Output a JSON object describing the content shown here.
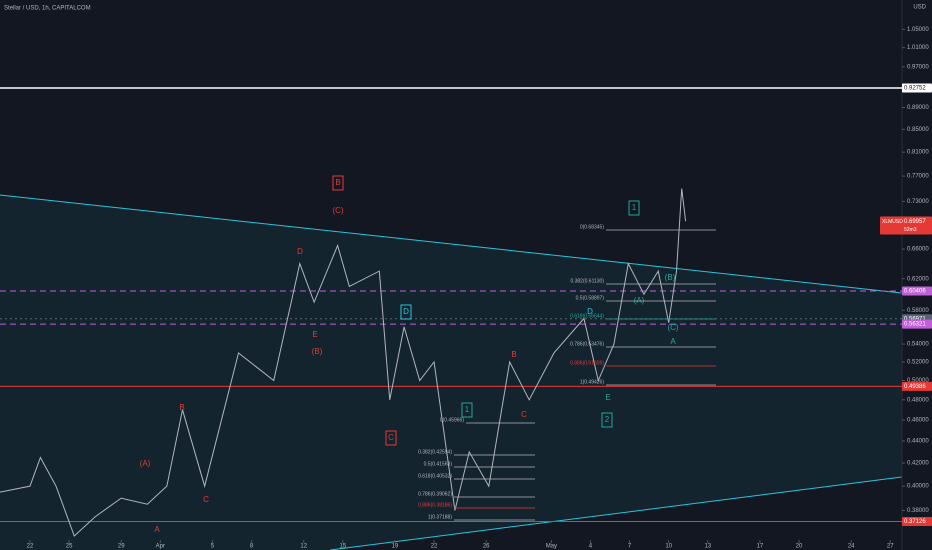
{
  "chart_data": {
    "type": "line",
    "title": "Stellar / USD, 1h, CAPITALCOM",
    "currency": "USD",
    "log_scale": true,
    "xlim": [
      -2.3,
      66.9
    ],
    "ylim": [
      0.357,
      1.117
    ],
    "xticks": [
      {
        "value": 0,
        "label": "22"
      },
      {
        "value": 3,
        "label": "25"
      },
      {
        "value": 7,
        "label": "29"
      },
      {
        "value": 10,
        "label": "Apr"
      },
      {
        "value": 14,
        "label": "5"
      },
      {
        "value": 17,
        "label": "8"
      },
      {
        "value": 21,
        "label": "12"
      },
      {
        "value": 24,
        "label": "15"
      },
      {
        "value": 28,
        "label": "19"
      },
      {
        "value": 31,
        "label": "22"
      },
      {
        "value": 35,
        "label": "26"
      },
      {
        "value": 40,
        "label": "May"
      },
      {
        "value": 43,
        "label": "4"
      },
      {
        "value": 46,
        "label": "7"
      },
      {
        "value": 49,
        "label": "10"
      },
      {
        "value": 52,
        "label": "13"
      },
      {
        "value": 56,
        "label": "17"
      },
      {
        "value": 59,
        "label": "20"
      },
      {
        "value": 63,
        "label": "24"
      },
      {
        "value": 66,
        "label": "27"
      }
    ],
    "yticks": [
      {
        "value": 1.05,
        "label": "1.05000"
      },
      {
        "value": 1.01,
        "label": "1.01000"
      },
      {
        "value": 0.97,
        "label": "0.97000"
      },
      {
        "value": 0.89,
        "label": "0.89000"
      },
      {
        "value": 0.85,
        "label": "0.85000"
      },
      {
        "value": 0.81,
        "label": "0.81000"
      },
      {
        "value": 0.77,
        "label": "0.77000"
      },
      {
        "value": 0.73,
        "label": "0.73000"
      },
      {
        "value": 0.66,
        "label": "0.66000"
      },
      {
        "value": 0.62,
        "label": "0.62000"
      },
      {
        "value": 0.58,
        "label": "0.58000"
      },
      {
        "value": 0.54,
        "label": "0.54000"
      },
      {
        "value": 0.52,
        "label": "0.52000"
      },
      {
        "value": 0.5,
        "label": "0.50000"
      },
      {
        "value": 0.48,
        "label": "0.48000"
      },
      {
        "value": 0.46,
        "label": "0.46000"
      },
      {
        "value": 0.44,
        "label": "0.44000"
      },
      {
        "value": 0.42,
        "label": "0.42000"
      },
      {
        "value": 0.4,
        "label": "0.40000"
      },
      {
        "value": 0.38,
        "label": "0.38000"
      }
    ],
    "series": [
      {
        "name": "XLMUSD",
        "color": "#b2b5be",
        "x": [
          -2.3,
          0,
          0.8,
          2,
          3.4,
          5,
          7,
          9,
          10.5,
          11.7,
          13.4,
          16,
          18.7,
          20.7,
          21.8,
          23.6,
          24.5,
          26.8,
          27.6,
          28.7,
          29.9,
          31,
          32.6,
          33.7,
          35.2,
          36.8,
          38.3,
          40.2,
          42.5,
          43.6,
          44.8,
          45.9,
          47.1,
          48.2,
          49,
          49.6,
          50,
          50.3
        ],
        "values": [
          0.395,
          0.4,
          0.425,
          0.4,
          0.36,
          0.375,
          0.39,
          0.385,
          0.4,
          0.47,
          0.4,
          0.53,
          0.5,
          0.64,
          0.59,
          0.665,
          0.61,
          0.63,
          0.48,
          0.56,
          0.5,
          0.52,
          0.38,
          0.43,
          0.4,
          0.52,
          0.48,
          0.53,
          0.57,
          0.5,
          0.54,
          0.64,
          0.6,
          0.63,
          0.565,
          0.63,
          0.75,
          0.7
        ]
      }
    ],
    "last_price": {
      "value": 0.69957,
      "label": "0.69957",
      "countdown": "52m3"
    },
    "price_lines": [
      {
        "value": 0.92752,
        "label": "0.92752",
        "color": "#ffffff",
        "style": "solid"
      },
      {
        "value": 0.60406,
        "label": "0.60406",
        "color": "#c05fd8",
        "style": "dashed"
      },
      {
        "value": 0.56971,
        "label": "0.56971",
        "color": "#5b6378",
        "style": "dotted"
      },
      {
        "value": 0.56321,
        "label": "0.56321",
        "color": "#c05fd8",
        "style": "dashed"
      },
      {
        "value": 0.49386,
        "label": "0.49386",
        "color": "#e53935",
        "style": "solid"
      },
      {
        "value": 0.37126,
        "label": "0.37126",
        "color": "#e53935",
        "style": "solid"
      }
    ],
    "annotations": [
      {
        "text": "B",
        "color": "#e53935",
        "boxed": true
      },
      {
        "text": "(C)",
        "color": "#e53935"
      },
      {
        "text": "D",
        "color": "#e53935"
      },
      {
        "text": "E",
        "color": "#e53935"
      },
      {
        "text": "(B)",
        "color": "#e53935"
      },
      {
        "text": "(A)",
        "color": "#e53935"
      },
      {
        "text": "B",
        "color": "#e53935"
      },
      {
        "text": "C",
        "color": "#e53935"
      },
      {
        "text": "A",
        "color": "#e53935"
      },
      {
        "text": "D",
        "color": "#26c6da",
        "boxed": true
      },
      {
        "text": "C",
        "color": "#e53935",
        "boxed": true
      },
      {
        "text": "1",
        "color": "#26a69a",
        "boxed": true
      },
      {
        "text": "2",
        "color": "#26a69a",
        "boxed": true
      },
      {
        "text": "B",
        "color": "#e53935"
      },
      {
        "text": "C",
        "color": "#e53935"
      },
      {
        "text": "E",
        "color": "#26a69a"
      },
      {
        "text": "D",
        "color": "#26c6da"
      },
      {
        "text": "1",
        "color": "#26a69a",
        "boxed": true
      },
      {
        "text": "(A)",
        "color": "#26a69a"
      },
      {
        "text": "(B)",
        "color": "#26a69a"
      },
      {
        "text": "(C)",
        "color": "#26a69a"
      },
      {
        "text": "A",
        "color": "#26a69a"
      }
    ],
    "fib_labels": [
      {
        "text": "0(0.45966)",
        "color": "#b2b5be"
      },
      {
        "text": "0.382(0.42594)",
        "color": "#b2b5be"
      },
      {
        "text": "0.5(0.41563)",
        "color": "#b2b5be"
      },
      {
        "text": "0.618(0.40532)",
        "color": "#b2b5be"
      },
      {
        "text": "0.786(0.39062)",
        "color": "#b2b5be"
      },
      {
        "text": "0.886(0.38186)",
        "color": "#e53935"
      },
      {
        "text": "1(0.37188)",
        "color": "#b2b5be"
      },
      {
        "text": "0(0.68345)",
        "color": "#b2b5be"
      },
      {
        "text": "0.382(0.61130)",
        "color": "#b2b5be"
      },
      {
        "text": "0.5(0.58897)",
        "color": "#b2b5be"
      },
      {
        "text": "0.618(0.56644)",
        "color": "#26a69a"
      },
      {
        "text": "0.786(0.53476)",
        "color": "#b2b5be"
      },
      {
        "text": "0.886(0.51609)",
        "color": "#e53935"
      },
      {
        "text": "1(0.49426)",
        "color": "#b2b5be"
      }
    ]
  }
}
